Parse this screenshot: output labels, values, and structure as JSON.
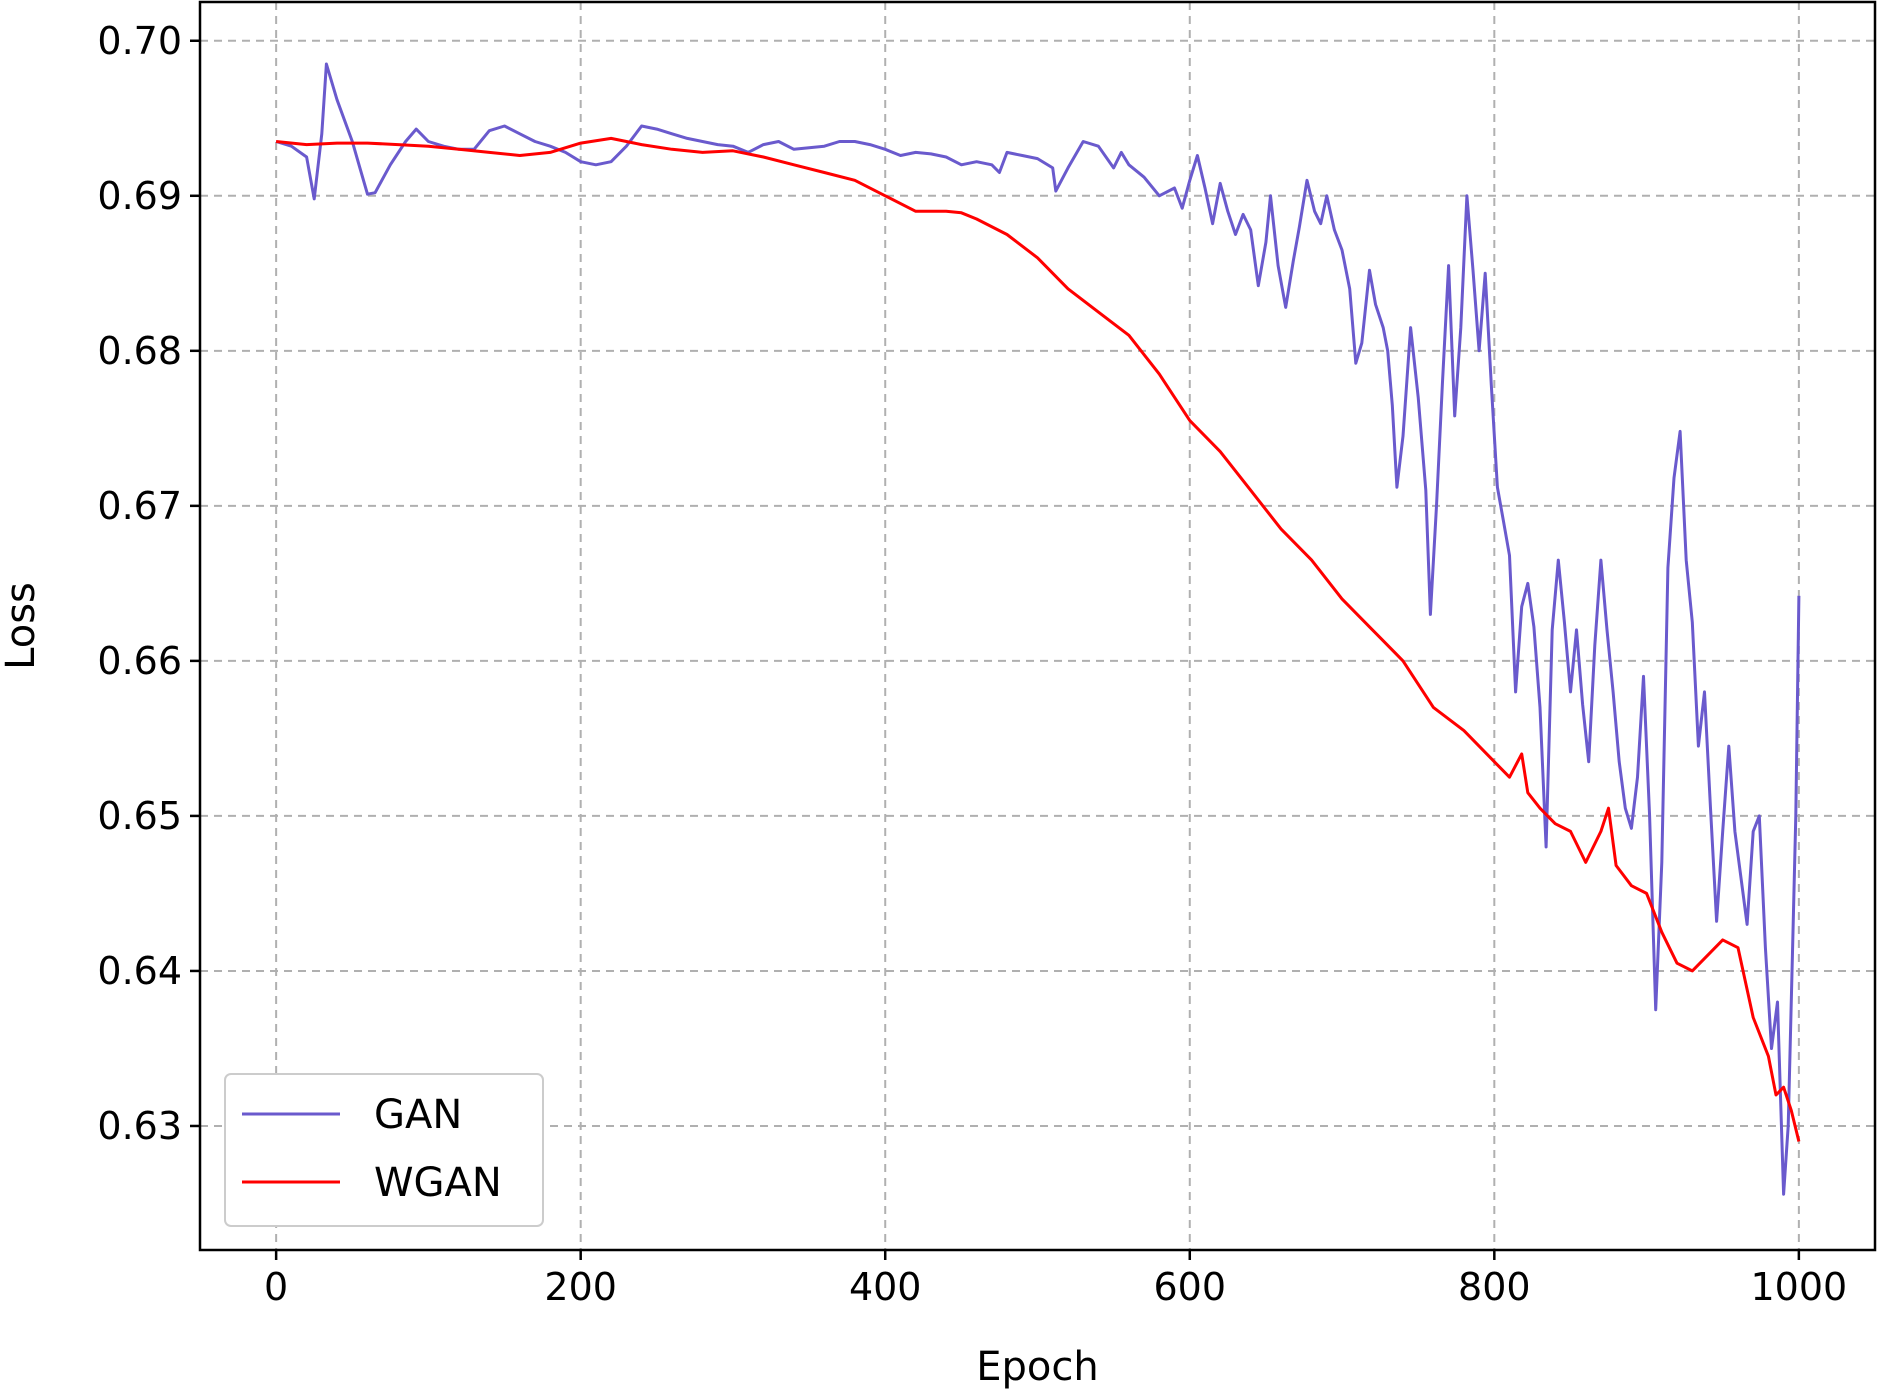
{
  "chart_data": {
    "type": "line",
    "xlabel": "Epoch",
    "ylabel": "Loss",
    "xlim": [
      -50,
      1050
    ],
    "ylim": [
      0.622,
      0.7025
    ],
    "grid": true,
    "legend_position": "lower-left",
    "x_ticks": [
      0,
      200,
      400,
      600,
      800,
      1000
    ],
    "x_tick_labels": [
      "0",
      "200",
      "400",
      "600",
      "800",
      "1000"
    ],
    "y_ticks": [
      0.63,
      0.64,
      0.65,
      0.66,
      0.67,
      0.68,
      0.69,
      0.7
    ],
    "y_tick_labels": [
      "0.63",
      "0.64",
      "0.65",
      "0.66",
      "0.67",
      "0.68",
      "0.69",
      "0.70"
    ],
    "series": [
      {
        "name": "GAN",
        "color": "#6a5acd",
        "points": [
          [
            0,
            0.6935
          ],
          [
            10,
            0.6932
          ],
          [
            20,
            0.6925
          ],
          [
            25,
            0.6898
          ],
          [
            30,
            0.694
          ],
          [
            33,
            0.6985
          ],
          [
            40,
            0.6962
          ],
          [
            50,
            0.6935
          ],
          [
            55,
            0.6918
          ],
          [
            60,
            0.6901
          ],
          [
            65,
            0.6902
          ],
          [
            75,
            0.692
          ],
          [
            85,
            0.6935
          ],
          [
            92,
            0.6943
          ],
          [
            100,
            0.6935
          ],
          [
            110,
            0.6932
          ],
          [
            120,
            0.693
          ],
          [
            130,
            0.693
          ],
          [
            140,
            0.6942
          ],
          [
            150,
            0.6945
          ],
          [
            160,
            0.694
          ],
          [
            170,
            0.6935
          ],
          [
            180,
            0.6932
          ],
          [
            190,
            0.6928
          ],
          [
            200,
            0.6922
          ],
          [
            210,
            0.692
          ],
          [
            220,
            0.6922
          ],
          [
            230,
            0.6932
          ],
          [
            240,
            0.6945
          ],
          [
            250,
            0.6943
          ],
          [
            260,
            0.694
          ],
          [
            270,
            0.6937
          ],
          [
            280,
            0.6935
          ],
          [
            290,
            0.6933
          ],
          [
            300,
            0.6932
          ],
          [
            310,
            0.6928
          ],
          [
            320,
            0.6933
          ],
          [
            330,
            0.6935
          ],
          [
            340,
            0.693
          ],
          [
            350,
            0.6931
          ],
          [
            360,
            0.6932
          ],
          [
            370,
            0.6935
          ],
          [
            380,
            0.6935
          ],
          [
            390,
            0.6933
          ],
          [
            400,
            0.693
          ],
          [
            410,
            0.6926
          ],
          [
            420,
            0.6928
          ],
          [
            430,
            0.6927
          ],
          [
            440,
            0.6925
          ],
          [
            450,
            0.692
          ],
          [
            460,
            0.6922
          ],
          [
            470,
            0.692
          ],
          [
            475,
            0.6915
          ],
          [
            480,
            0.6928
          ],
          [
            490,
            0.6926
          ],
          [
            500,
            0.6924
          ],
          [
            510,
            0.6918
          ],
          [
            512,
            0.6903
          ],
          [
            520,
            0.6918
          ],
          [
            530,
            0.6935
          ],
          [
            540,
            0.6932
          ],
          [
            550,
            0.6918
          ],
          [
            555,
            0.6928
          ],
          [
            560,
            0.692
          ],
          [
            570,
            0.6912
          ],
          [
            580,
            0.69
          ],
          [
            590,
            0.6905
          ],
          [
            595,
            0.6892
          ],
          [
            600,
            0.691
          ],
          [
            605,
            0.6926
          ],
          [
            610,
            0.6905
          ],
          [
            615,
            0.6882
          ],
          [
            620,
            0.6908
          ],
          [
            625,
            0.689
          ],
          [
            630,
            0.6875
          ],
          [
            635,
            0.6888
          ],
          [
            640,
            0.6878
          ],
          [
            645,
            0.6842
          ],
          [
            650,
            0.687
          ],
          [
            653,
            0.69
          ],
          [
            658,
            0.6855
          ],
          [
            663,
            0.6828
          ],
          [
            668,
            0.6858
          ],
          [
            672,
            0.688
          ],
          [
            677,
            0.691
          ],
          [
            682,
            0.689
          ],
          [
            686,
            0.6882
          ],
          [
            690,
            0.69
          ],
          [
            695,
            0.6878
          ],
          [
            700,
            0.6865
          ],
          [
            705,
            0.684
          ],
          [
            709,
            0.6792
          ],
          [
            713,
            0.6805
          ],
          [
            718,
            0.6852
          ],
          [
            722,
            0.683
          ],
          [
            727,
            0.6815
          ],
          [
            730,
            0.68
          ],
          [
            733,
            0.6765
          ],
          [
            736,
            0.6712
          ],
          [
            740,
            0.6745
          ],
          [
            745,
            0.6815
          ],
          [
            750,
            0.677
          ],
          [
            755,
            0.671
          ],
          [
            758,
            0.663
          ],
          [
            762,
            0.67
          ],
          [
            766,
            0.678
          ],
          [
            770,
            0.6855
          ],
          [
            774,
            0.6758
          ],
          [
            778,
            0.6815
          ],
          [
            782,
            0.69
          ],
          [
            786,
            0.6852
          ],
          [
            790,
            0.68
          ],
          [
            794,
            0.685
          ],
          [
            798,
            0.6778
          ],
          [
            802,
            0.6712
          ],
          [
            806,
            0.669
          ],
          [
            810,
            0.6668
          ],
          [
            814,
            0.658
          ],
          [
            818,
            0.6635
          ],
          [
            822,
            0.665
          ],
          [
            826,
            0.6622
          ],
          [
            830,
            0.657
          ],
          [
            834,
            0.648
          ],
          [
            838,
            0.662
          ],
          [
            842,
            0.6665
          ],
          [
            846,
            0.6625
          ],
          [
            850,
            0.658
          ],
          [
            854,
            0.662
          ],
          [
            858,
            0.6572
          ],
          [
            862,
            0.6535
          ],
          [
            866,
            0.661
          ],
          [
            870,
            0.6665
          ],
          [
            874,
            0.662
          ],
          [
            878,
            0.658
          ],
          [
            882,
            0.6535
          ],
          [
            886,
            0.6505
          ],
          [
            890,
            0.6492
          ],
          [
            894,
            0.6525
          ],
          [
            898,
            0.659
          ],
          [
            902,
            0.65
          ],
          [
            906,
            0.6375
          ],
          [
            910,
            0.647
          ],
          [
            914,
            0.666
          ],
          [
            918,
            0.6718
          ],
          [
            922,
            0.6748
          ],
          [
            926,
            0.6665
          ],
          [
            930,
            0.6625
          ],
          [
            934,
            0.6545
          ],
          [
            938,
            0.658
          ],
          [
            942,
            0.6505
          ],
          [
            946,
            0.6432
          ],
          [
            950,
            0.649
          ],
          [
            954,
            0.6545
          ],
          [
            958,
            0.649
          ],
          [
            962,
            0.646
          ],
          [
            966,
            0.643
          ],
          [
            970,
            0.649
          ],
          [
            974,
            0.65
          ],
          [
            978,
            0.6415
          ],
          [
            982,
            0.635
          ],
          [
            986,
            0.638
          ],
          [
            990,
            0.6256
          ],
          [
            993,
            0.63
          ],
          [
            996,
            0.642
          ],
          [
            998,
            0.65
          ],
          [
            1000,
            0.6642
          ]
        ]
      },
      {
        "name": "WGAN",
        "color": "#ff0000",
        "points": [
          [
            0,
            0.6935
          ],
          [
            20,
            0.6933
          ],
          [
            40,
            0.6934
          ],
          [
            60,
            0.6934
          ],
          [
            80,
            0.6933
          ],
          [
            100,
            0.6932
          ],
          [
            120,
            0.693
          ],
          [
            140,
            0.6928
          ],
          [
            160,
            0.6926
          ],
          [
            180,
            0.6928
          ],
          [
            200,
            0.6934
          ],
          [
            220,
            0.6937
          ],
          [
            240,
            0.6933
          ],
          [
            260,
            0.693
          ],
          [
            280,
            0.6928
          ],
          [
            300,
            0.6929
          ],
          [
            320,
            0.6925
          ],
          [
            340,
            0.692
          ],
          [
            360,
            0.6915
          ],
          [
            380,
            0.691
          ],
          [
            400,
            0.69
          ],
          [
            420,
            0.689
          ],
          [
            440,
            0.689
          ],
          [
            450,
            0.6889
          ],
          [
            460,
            0.6885
          ],
          [
            480,
            0.6875
          ],
          [
            500,
            0.686
          ],
          [
            520,
            0.684
          ],
          [
            540,
            0.6825
          ],
          [
            560,
            0.681
          ],
          [
            580,
            0.6785
          ],
          [
            600,
            0.6755
          ],
          [
            620,
            0.6735
          ],
          [
            640,
            0.671
          ],
          [
            660,
            0.6685
          ],
          [
            680,
            0.6665
          ],
          [
            700,
            0.664
          ],
          [
            720,
            0.662
          ],
          [
            740,
            0.66
          ],
          [
            760,
            0.657
          ],
          [
            780,
            0.6555
          ],
          [
            800,
            0.6535
          ],
          [
            810,
            0.6525
          ],
          [
            818,
            0.654
          ],
          [
            822,
            0.6515
          ],
          [
            830,
            0.6505
          ],
          [
            840,
            0.6495
          ],
          [
            850,
            0.649
          ],
          [
            860,
            0.647
          ],
          [
            870,
            0.649
          ],
          [
            875,
            0.6505
          ],
          [
            880,
            0.6468
          ],
          [
            890,
            0.6455
          ],
          [
            900,
            0.645
          ],
          [
            910,
            0.6425
          ],
          [
            920,
            0.6405
          ],
          [
            930,
            0.64
          ],
          [
            940,
            0.641
          ],
          [
            950,
            0.642
          ],
          [
            960,
            0.6415
          ],
          [
            970,
            0.637
          ],
          [
            980,
            0.6345
          ],
          [
            985,
            0.632
          ],
          [
            990,
            0.6325
          ],
          [
            995,
            0.631
          ],
          [
            1000,
            0.629
          ]
        ]
      }
    ]
  }
}
